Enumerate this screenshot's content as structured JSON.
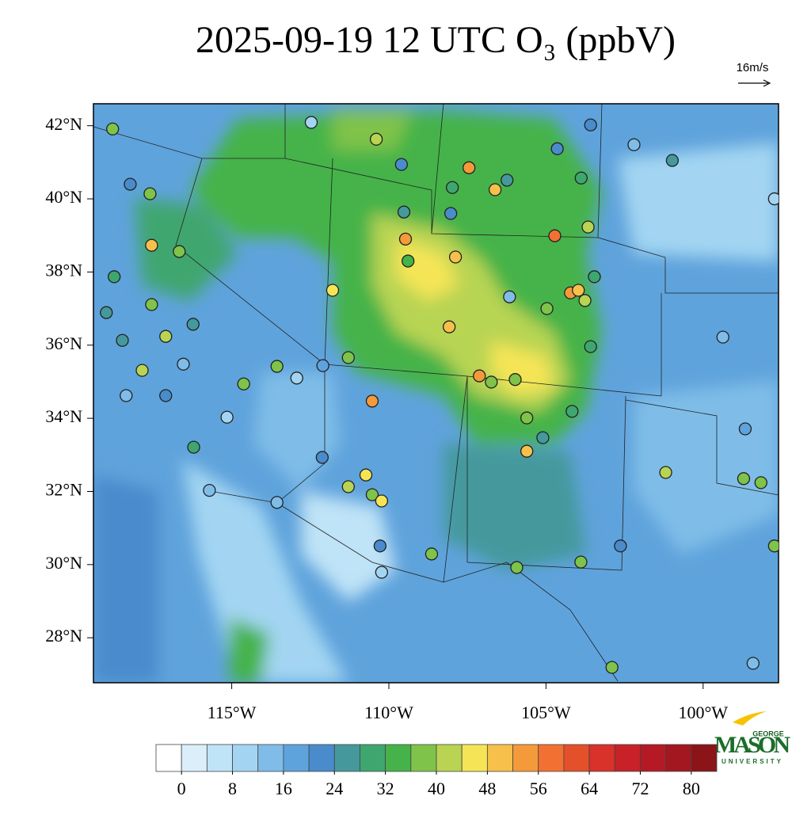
{
  "chart_data": {
    "type": "map",
    "title": "2025-09-19 12 UTC O₃ (ppbV)",
    "vector_label": "16m/s",
    "xlim": [
      -119.4,
      -97.6
    ],
    "ylim": [
      26.77,
      42.6
    ],
    "xticks": [
      {
        "value": -115,
        "label": "115°W"
      },
      {
        "value": -110,
        "label": "110°W"
      },
      {
        "value": -105,
        "label": "105°W"
      },
      {
        "value": -100,
        "label": "100°W"
      }
    ],
    "yticks": [
      {
        "value": 28,
        "label": "28°N"
      },
      {
        "value": 30,
        "label": "30°N"
      },
      {
        "value": 32,
        "label": "32°N"
      },
      {
        "value": 34,
        "label": "34°N"
      },
      {
        "value": 36,
        "label": "36°N"
      },
      {
        "value": 38,
        "label": "38°N"
      },
      {
        "value": 40,
        "label": "40°N"
      },
      {
        "value": 42,
        "label": "42°N"
      }
    ],
    "colorbar": {
      "levels": [
        0,
        4,
        8,
        12,
        16,
        20,
        24,
        28,
        32,
        36,
        40,
        44,
        48,
        52,
        56,
        60,
        64,
        68,
        72,
        76,
        80
      ],
      "ticks": [
        0,
        8,
        16,
        24,
        32,
        40,
        48,
        56,
        64,
        72,
        80
      ],
      "colors": [
        "#ffffff",
        "#dbeffa",
        "#bfe3f7",
        "#a3d5f2",
        "#7fbde8",
        "#5fa3dc",
        "#4a8bcc",
        "#45999c",
        "#3fa670",
        "#45b349",
        "#7fc34a",
        "#b8d452",
        "#f5e556",
        "#f7c04a",
        "#f59a3a",
        "#f27132",
        "#e4502a",
        "#d8322a",
        "#c82128",
        "#b51a24",
        "#a21720",
        "#8a1418"
      ]
    },
    "stations": {
      "x": [
        -112.47,
        -110.4,
        -118.79,
        -107.45,
        -106.62,
        -104.72,
        -109.47,
        -107.88,
        -111.79,
        -108.08,
        -107.12,
        -110.53,
        -104.22,
        -103.97,
        -103.46,
        -103.76,
        -103.66,
        -103.88,
        -102.2,
        -100.98,
        -97.73,
        -99.37,
        -98.66,
        -101.19,
        -98.71,
        -98.16,
        -97.73,
        -102.63,
        -103.89,
        -105.93,
        -102.9,
        -98.41,
        -110.73,
        -111.29,
        -110.53,
        -110.23,
        -110.23,
        -108.64,
        -110.28,
        -112.12,
        -113.56,
        -115.71,
        -116.21,
        -115.15,
        -117.1,
        -118.36,
        -118.48,
        -117.85,
        -117.1,
        -116.54,
        -117.55,
        -116.23,
        -116.67,
        -117.55,
        -118.23,
        -117.6,
        -118.74,
        -118.99,
        -114.62,
        -113.56,
        -112.93,
        -112.1,
        -111.29,
        -109.6,
        -109.52,
        -109.39,
        -108.03,
        -107.98,
        -106.24,
        -104.64,
        -103.58,
        -104.17,
        -105.61,
        -105.1,
        -106.16,
        -104.97,
        -105.61,
        -106.74,
        -105.98,
        -103.58
      ],
      "y": [
        42.09,
        41.63,
        41.91,
        40.85,
        40.25,
        38.99,
        38.9,
        38.41,
        37.5,
        36.5,
        35.16,
        34.47,
        37.43,
        37.5,
        37.87,
        37.22,
        39.23,
        40.57,
        41.48,
        41.05,
        40.0,
        36.22,
        33.71,
        32.52,
        32.35,
        32.24,
        30.51,
        30.51,
        30.07,
        29.92,
        27.19,
        27.3,
        32.45,
        32.13,
        31.91,
        31.74,
        29.79,
        30.29,
        30.51,
        32.93,
        31.7,
        32.03,
        33.21,
        34.03,
        34.62,
        34.62,
        36.13,
        35.31,
        36.24,
        35.48,
        37.11,
        36.57,
        38.56,
        38.73,
        40.4,
        40.14,
        37.87,
        36.89,
        34.94,
        35.42,
        35.1,
        35.44,
        35.66,
        40.94,
        39.64,
        38.3,
        39.6,
        40.31,
        40.51,
        41.37,
        42.02,
        34.19,
        33.1,
        33.47,
        37.32,
        37.0,
        34.01,
        34.99,
        35.06,
        35.96
      ],
      "values": [
        8,
        42,
        36,
        52,
        48,
        56,
        52,
        48,
        44,
        48,
        52,
        54,
        52,
        48,
        28,
        40,
        40,
        28,
        12,
        24,
        10,
        14,
        18,
        42,
        36,
        36,
        36,
        20,
        38,
        36,
        36,
        12,
        44,
        40,
        36,
        44,
        10,
        36,
        22,
        20,
        14,
        12,
        30,
        8,
        20,
        12,
        24,
        40,
        40,
        14,
        38,
        24,
        36,
        48,
        22,
        36,
        30,
        26,
        38,
        36,
        10,
        16,
        36,
        20,
        24,
        32,
        22,
        30,
        26,
        22,
        20,
        28,
        48,
        24,
        12,
        38,
        38,
        36,
        36,
        28
      ]
    },
    "logo": {
      "top": "GEORGE",
      "name": "MASON",
      "bottom": "UNIVERSITY"
    }
  }
}
